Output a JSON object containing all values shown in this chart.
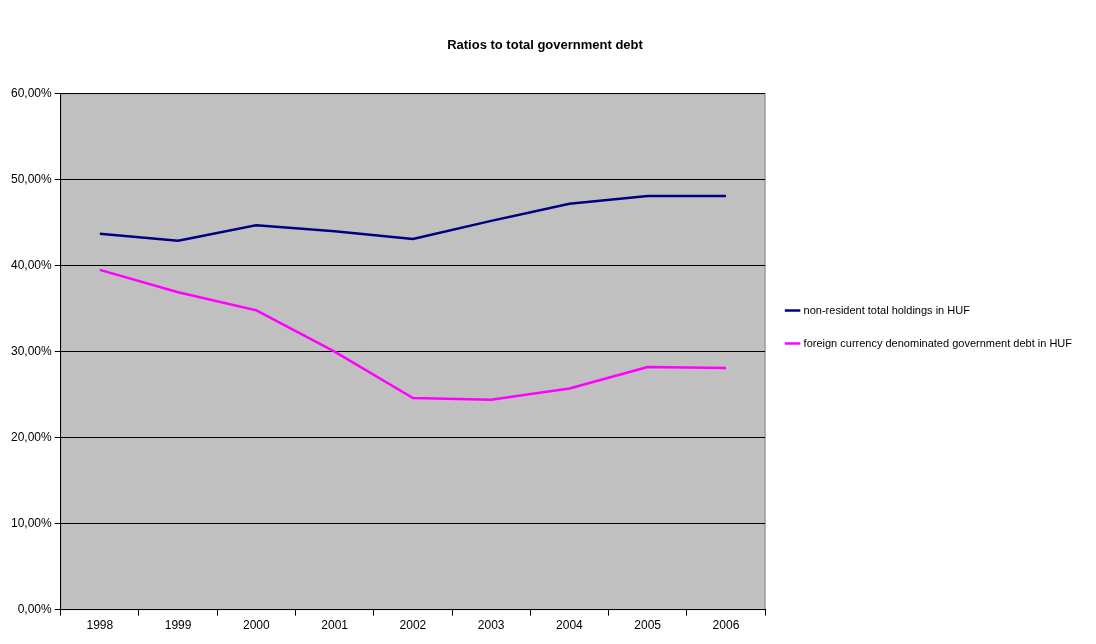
{
  "chart_data": {
    "type": "line",
    "title": "Ratios to total government debt",
    "categories": [
      "1998",
      "1999",
      "2000",
      "2001",
      "2002",
      "2003",
      "2004",
      "2005",
      "2006"
    ],
    "series": [
      {
        "name": "non-resident total holdings in HUF",
        "color": "#000080",
        "values": [
          43.7,
          42.9,
          44.7,
          44.0,
          43.1,
          45.2,
          47.2,
          48.1,
          48.1
        ]
      },
      {
        "name": "foreign currency denominated government debt in HUF",
        "color": "#ff00ff",
        "values": [
          39.5,
          36.9,
          34.8,
          30.0,
          24.6,
          24.4,
          25.7,
          28.2,
          28.1
        ]
      }
    ],
    "ylim": [
      0,
      60
    ],
    "yticks": [
      {
        "value": 0,
        "label": "0,00%"
      },
      {
        "value": 10,
        "label": "10,00%"
      },
      {
        "value": 20,
        "label": "20,00%"
      },
      {
        "value": 30,
        "label": "30,00%"
      },
      {
        "value": 40,
        "label": "40,00%"
      },
      {
        "value": 50,
        "label": "50,00%"
      },
      {
        "value": 60,
        "label": "60,00%"
      }
    ],
    "grid": "y",
    "legend": "right",
    "marker": "none",
    "line_style": "solid"
  }
}
